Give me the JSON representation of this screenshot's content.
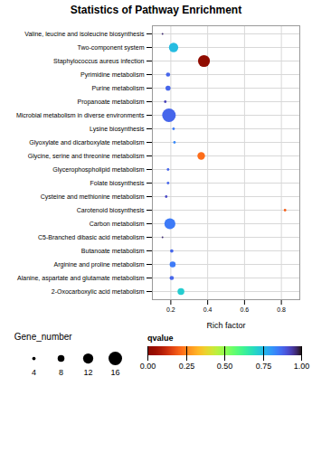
{
  "chart_data": {
    "type": "scatter",
    "title": "Statistics of Pathway Enrichment",
    "xlabel": "Rich factor",
    "categories": [
      "Valine, leucine and isoleucine biosynthesis",
      "Two-component system",
      "Staphylococcus aureus infection",
      "Pyrimidine metabolism",
      "Purine metabolism",
      "Propanoate metabolism",
      "Microbial metabolism in diverse environments",
      "Lysine biosynthesis",
      "Glyoxylate and dicarboxylate metabolism",
      "Glycine, serine and threonine metabolism",
      "Glycerophospholipid metabolism",
      "Folate biosynthesis",
      "Cysteine and methionine metabolism",
      "Carotenoid biosynthesis",
      "Carbon metabolism",
      "C5-Branched dibasic acid metabolism",
      "Butanoate metabolism",
      "Arginine and proline metabolism",
      "Alanine, aspartate and glutamate metabolism",
      "2-Oxocarboxylic acid metabolism"
    ],
    "x": [
      0.155,
      0.215,
      0.38,
      0.185,
      0.185,
      0.17,
      0.19,
      0.215,
      0.22,
      0.365,
      0.185,
      0.185,
      0.175,
      0.82,
      0.195,
      0.155,
      0.205,
      0.21,
      0.205,
      0.255
    ],
    "size": [
      2,
      11,
      14,
      5,
      6,
      3,
      16,
      3,
      3,
      9,
      3,
      3,
      3,
      3,
      13,
      2,
      4,
      7,
      5,
      8
    ],
    "size_legend": {
      "title": "Gene_number",
      "values": [
        4,
        8,
        12,
        16
      ]
    },
    "color_values": [
      0.97,
      0.75,
      0.01,
      0.88,
      0.88,
      0.93,
      0.88,
      0.85,
      0.83,
      0.22,
      0.88,
      0.88,
      0.92,
      0.2,
      0.85,
      0.97,
      0.88,
      0.85,
      0.88,
      0.72
    ],
    "colorbar": {
      "title": "qvalue",
      "range": [
        0.0,
        1.0
      ],
      "ticks": [
        {
          "value": 0.0,
          "label": "0.00"
        },
        {
          "value": 0.25,
          "label": "0.25"
        },
        {
          "value": 0.5,
          "label": "0.50"
        },
        {
          "value": 0.75,
          "label": "0.75"
        },
        {
          "value": 1.0,
          "label": "1.00"
        }
      ]
    },
    "xlim": [
      0.1,
      0.9
    ],
    "xticks": [
      0.2,
      0.4,
      0.6,
      0.8
    ],
    "grid": true
  }
}
